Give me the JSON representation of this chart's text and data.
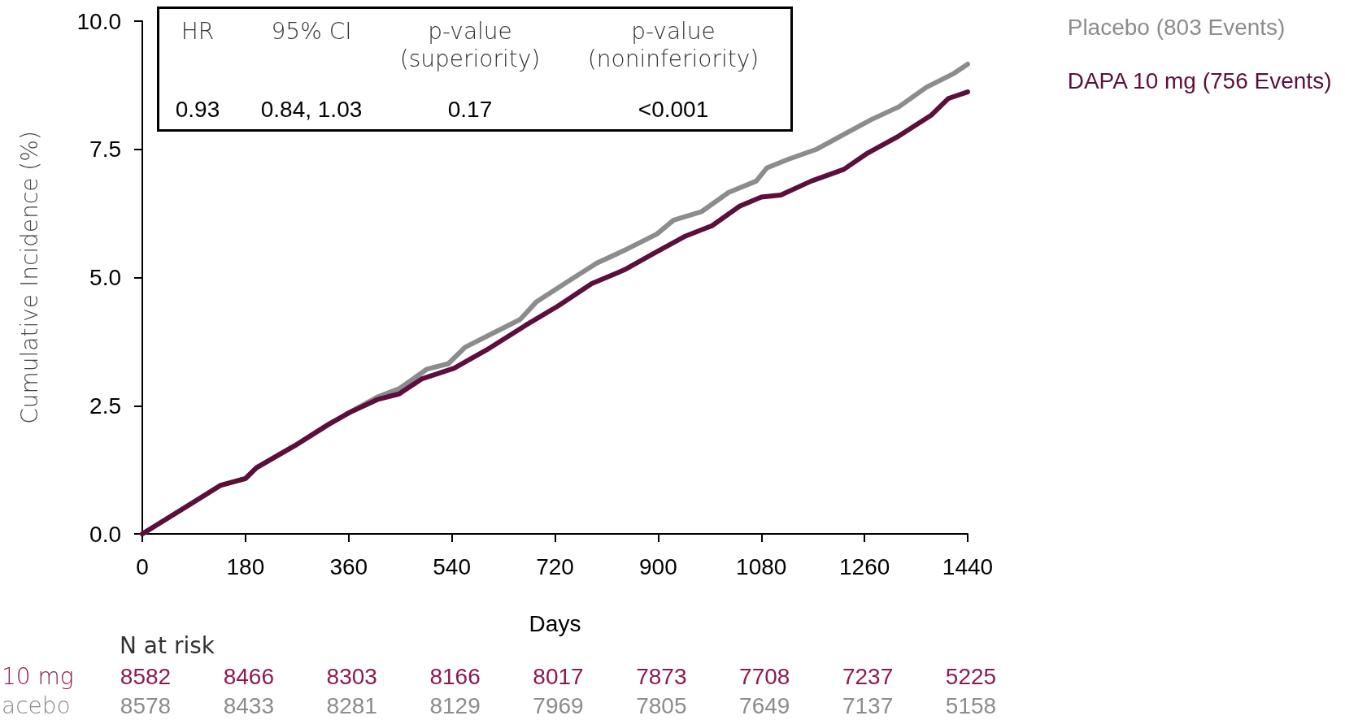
{
  "chart_data": {
    "type": "line",
    "xlabel": "Days",
    "ylabel": "Cumulative Incidence (%)",
    "xlim": [
      0,
      1440
    ],
    "xticks": [
      0,
      180,
      360,
      540,
      720,
      900,
      1080,
      1260,
      1440
    ],
    "ylim": [
      0,
      10
    ],
    "yticks": [
      {
        "value": 0,
        "label": "0.0"
      },
      2.5,
      {
        "value": 5,
        "label": "5.0"
      },
      7.5,
      {
        "value": 10,
        "label": "10.0"
      }
    ],
    "grid": false,
    "legend": "top right",
    "marker": "none",
    "line_style": "solid",
    "series": [
      {
        "name": "Placebo (803 Events)",
        "color": "#8c8c8c",
        "x": [
          0,
          75,
          137,
          180,
          199,
          266,
          324,
          362,
          410,
          448,
          496,
          534,
          563,
          611,
          659,
          688,
          745,
          793,
          841,
          898,
          927,
          975,
          1023,
          1071,
          1090,
          1128,
          1176,
          1224,
          1272,
          1320,
          1368,
          1416,
          1440
        ],
        "values": [
          0,
          0.52,
          0.95,
          1.08,
          1.29,
          1.72,
          2.13,
          2.37,
          2.67,
          2.83,
          3.21,
          3.32,
          3.64,
          3.91,
          4.18,
          4.53,
          4.94,
          5.28,
          5.53,
          5.85,
          6.12,
          6.28,
          6.66,
          6.88,
          7.14,
          7.31,
          7.5,
          7.79,
          8.08,
          8.33,
          8.71,
          8.98,
          9.16
        ]
      },
      {
        "name": "DAPA 10 mg (756 Events)",
        "color": "#5c0f3a",
        "x": [
          0,
          75,
          137,
          180,
          199,
          266,
          324,
          362,
          410,
          448,
          487,
          544,
          601,
          669,
          726,
          784,
          841,
          889,
          946,
          994,
          1042,
          1080,
          1114,
          1167,
          1224,
          1263,
          1320,
          1377,
          1406,
          1440
        ],
        "values": [
          0,
          0.52,
          0.95,
          1.08,
          1.29,
          1.72,
          2.13,
          2.37,
          2.62,
          2.73,
          3.02,
          3.23,
          3.59,
          4.07,
          4.45,
          4.88,
          5.15,
          5.45,
          5.8,
          6.01,
          6.39,
          6.57,
          6.61,
          6.88,
          7.11,
          7.41,
          7.76,
          8.17,
          8.49,
          8.62
        ]
      }
    ],
    "annotations": [
      "HR",
      "95% CI",
      "p-value\n(superiority)",
      "p-value\n(noninferiority)",
      "0.93",
      "0.84, 1.03",
      "0.17",
      "<0.001",
      "N at risk",
      "10 mg",
      "8582",
      "8466",
      "8303",
      "8166",
      "8017",
      "7873",
      "7708",
      "7237",
      "5225",
      "acebo",
      "8578",
      "8433",
      "8281",
      "8129",
      "7969",
      "7805",
      "7649",
      "7137",
      "5158"
    ]
  }
}
